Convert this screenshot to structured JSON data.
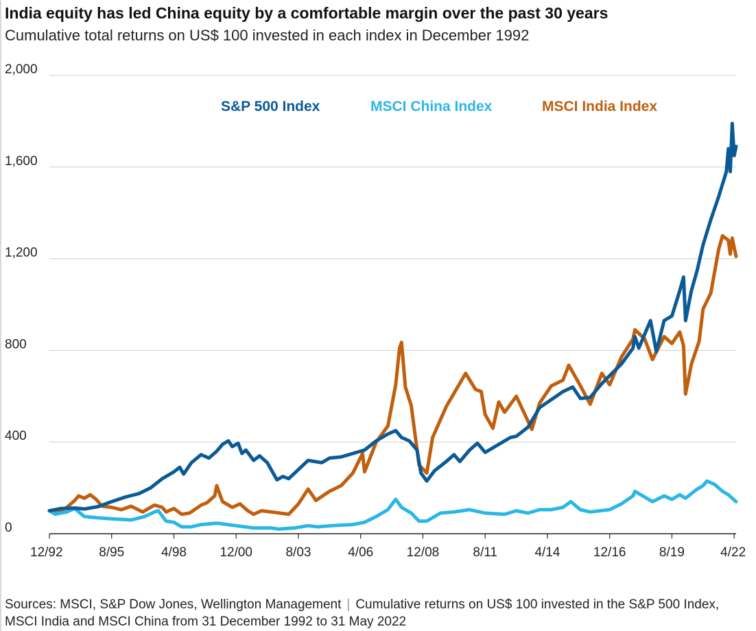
{
  "title": "India equity has led China equity by a comfortable margin over the past 30 years",
  "subtitle": "Cumulative total returns on US$ 100 invested in each index in December 1992",
  "source": {
    "left": "Sources: MSCI, S&P Dow Jones, Wellington Management",
    "right": "Cumulative returns on US$ 100 invested in the S&P 500 Index, MSCI India and MSCI China from 31 December 1992 to 31 May 2022"
  },
  "chart_data": {
    "type": "line",
    "title": "India equity has led China equity by a comfortable margin over the past 30 years",
    "subtitle": "Cumulative total returns on US$ 100 invested in each index in December 1992",
    "xlabel": "",
    "ylabel": "",
    "x_range": [
      "1992-12",
      "2022-05"
    ],
    "ylim": [
      0,
      2000
    ],
    "yticks": [
      0,
      400,
      800,
      1200,
      1600,
      2000
    ],
    "ytick_labels": [
      "0",
      "400",
      "800",
      "1,200",
      "1,600",
      "2,000"
    ],
    "xticks": [
      "1992-12",
      "1995-08",
      "1998-04",
      "2000-12",
      "2003-08",
      "2006-04",
      "2008-12",
      "2011-08",
      "2014-04",
      "2016-12",
      "2019-08",
      "2022-04"
    ],
    "xtick_labels": [
      "12/92",
      "8/95",
      "4/98",
      "12/00",
      "8/03",
      "4/06",
      "12/08",
      "8/11",
      "4/14",
      "12/16",
      "8/19",
      "4/22"
    ],
    "grid": "horizontal",
    "legend": "top, inline",
    "series": [
      {
        "name": "S&P 500 Index",
        "color": "#0b5a96",
        "points": [
          [
            "1992-12",
            100
          ],
          [
            "1993-06",
            110
          ],
          [
            "1994-01",
            112
          ],
          [
            "1994-06",
            108
          ],
          [
            "1995-01",
            118
          ],
          [
            "1995-08",
            140
          ],
          [
            "1996-03",
            160
          ],
          [
            "1996-10",
            175
          ],
          [
            "1997-04",
            200
          ],
          [
            "1997-10",
            240
          ],
          [
            "1998-04",
            270
          ],
          [
            "1998-07",
            290
          ],
          [
            "1998-09",
            260
          ],
          [
            "1999-01",
            310
          ],
          [
            "1999-06",
            345
          ],
          [
            "1999-10",
            330
          ],
          [
            "2000-02",
            360
          ],
          [
            "2000-05",
            390
          ],
          [
            "2000-08",
            405
          ],
          [
            "2000-10",
            380
          ],
          [
            "2001-01",
            395
          ],
          [
            "2001-03",
            350
          ],
          [
            "2001-05",
            365
          ],
          [
            "2001-09",
            320
          ],
          [
            "2001-12",
            340
          ],
          [
            "2002-04",
            310
          ],
          [
            "2002-07",
            265
          ],
          [
            "2002-09",
            235
          ],
          [
            "2002-12",
            250
          ],
          [
            "2003-03",
            240
          ],
          [
            "2003-08",
            280
          ],
          [
            "2004-01",
            320
          ],
          [
            "2004-08",
            310
          ],
          [
            "2004-12",
            330
          ],
          [
            "2005-06",
            335
          ],
          [
            "2005-12",
            350
          ],
          [
            "2006-06",
            365
          ],
          [
            "2006-12",
            405
          ],
          [
            "2007-06",
            435
          ],
          [
            "2007-10",
            450
          ],
          [
            "2008-01",
            420
          ],
          [
            "2008-05",
            405
          ],
          [
            "2008-09",
            365
          ],
          [
            "2008-11",
            265
          ],
          [
            "2009-02",
            230
          ],
          [
            "2009-06",
            275
          ],
          [
            "2009-12",
            315
          ],
          [
            "2010-04",
            345
          ],
          [
            "2010-07",
            315
          ],
          [
            "2010-12",
            365
          ],
          [
            "2011-04",
            395
          ],
          [
            "2011-08",
            355
          ],
          [
            "2011-12",
            375
          ],
          [
            "2012-09",
            420
          ],
          [
            "2012-12",
            425
          ],
          [
            "2013-06",
            465
          ],
          [
            "2013-12",
            550
          ],
          [
            "2014-06",
            585
          ],
          [
            "2014-12",
            620
          ],
          [
            "2015-05",
            640
          ],
          [
            "2015-09",
            590
          ],
          [
            "2016-02",
            595
          ],
          [
            "2016-08",
            655
          ],
          [
            "2016-12",
            690
          ],
          [
            "2017-06",
            740
          ],
          [
            "2017-12",
            810
          ],
          [
            "2018-01",
            860
          ],
          [
            "2018-03",
            810
          ],
          [
            "2018-09",
            930
          ],
          [
            "2018-12",
            795
          ],
          [
            "2019-04",
            930
          ],
          [
            "2019-08",
            950
          ],
          [
            "2019-12",
            1060
          ],
          [
            "2020-02",
            1120
          ],
          [
            "2020-03",
            930
          ],
          [
            "2020-06",
            1060
          ],
          [
            "2020-09",
            1150
          ],
          [
            "2020-12",
            1260
          ],
          [
            "2021-04",
            1370
          ],
          [
            "2021-08",
            1470
          ],
          [
            "2021-12",
            1580
          ],
          [
            "2022-01",
            1680
          ],
          [
            "2022-02",
            1580
          ],
          [
            "2022-03",
            1790
          ],
          [
            "2022-04",
            1650
          ],
          [
            "2022-05",
            1690
          ]
        ]
      },
      {
        "name": "MSCI China Index",
        "color": "#2ab7e6",
        "points": [
          [
            "1992-12",
            100
          ],
          [
            "1993-03",
            85
          ],
          [
            "1993-09",
            95
          ],
          [
            "1994-01",
            110
          ],
          [
            "1994-06",
            75
          ],
          [
            "1994-12",
            70
          ],
          [
            "1995-08",
            65
          ],
          [
            "1996-06",
            60
          ],
          [
            "1997-01",
            75
          ],
          [
            "1997-06",
            95
          ],
          [
            "1997-08",
            100
          ],
          [
            "1997-12",
            55
          ],
          [
            "1998-04",
            50
          ],
          [
            "1998-08",
            30
          ],
          [
            "1999-01",
            30
          ],
          [
            "1999-06",
            40
          ],
          [
            "2000-01",
            45
          ],
          [
            "2000-03",
            45
          ],
          [
            "2000-12",
            35
          ],
          [
            "2001-09",
            25
          ],
          [
            "2002-06",
            25
          ],
          [
            "2002-10",
            20
          ],
          [
            "2003-06",
            25
          ],
          [
            "2004-01",
            35
          ],
          [
            "2004-06",
            30
          ],
          [
            "2005-01",
            35
          ],
          [
            "2005-12",
            40
          ],
          [
            "2006-06",
            50
          ],
          [
            "2006-12",
            75
          ],
          [
            "2007-06",
            105
          ],
          [
            "2007-10",
            150
          ],
          [
            "2008-01",
            115
          ],
          [
            "2008-06",
            90
          ],
          [
            "2008-10",
            55
          ],
          [
            "2009-02",
            55
          ],
          [
            "2009-09",
            90
          ],
          [
            "2010-04",
            95
          ],
          [
            "2010-12",
            105
          ],
          [
            "2011-08",
            90
          ],
          [
            "2012-06",
            85
          ],
          [
            "2012-12",
            100
          ],
          [
            "2013-06",
            90
          ],
          [
            "2013-12",
            105
          ],
          [
            "2014-06",
            105
          ],
          [
            "2014-12",
            115
          ],
          [
            "2015-04",
            140
          ],
          [
            "2015-09",
            105
          ],
          [
            "2016-02",
            95
          ],
          [
            "2016-12",
            105
          ],
          [
            "2017-06",
            130
          ],
          [
            "2017-12",
            165
          ],
          [
            "2018-01",
            185
          ],
          [
            "2018-10",
            140
          ],
          [
            "2019-04",
            165
          ],
          [
            "2019-08",
            150
          ],
          [
            "2019-12",
            170
          ],
          [
            "2020-03",
            155
          ],
          [
            "2020-09",
            195
          ],
          [
            "2020-12",
            210
          ],
          [
            "2021-02",
            230
          ],
          [
            "2021-06",
            215
          ],
          [
            "2021-10",
            185
          ],
          [
            "2022-01",
            170
          ],
          [
            "2022-03",
            155
          ],
          [
            "2022-05",
            140
          ]
        ]
      },
      {
        "name": "MSCI India Index",
        "color": "#c05f0e",
        "points": [
          [
            "1992-12",
            100
          ],
          [
            "1993-04",
            90
          ],
          [
            "1993-09",
            115
          ],
          [
            "1994-01",
            145
          ],
          [
            "1994-03",
            165
          ],
          [
            "1994-06",
            155
          ],
          [
            "1994-09",
            170
          ],
          [
            "1994-12",
            150
          ],
          [
            "1995-03",
            120
          ],
          [
            "1995-08",
            115
          ],
          [
            "1996-01",
            105
          ],
          [
            "1996-06",
            120
          ],
          [
            "1996-12",
            95
          ],
          [
            "1997-06",
            125
          ],
          [
            "1997-10",
            115
          ],
          [
            "1997-12",
            95
          ],
          [
            "1998-04",
            110
          ],
          [
            "1998-08",
            85
          ],
          [
            "1998-12",
            90
          ],
          [
            "1999-06",
            125
          ],
          [
            "1999-09",
            135
          ],
          [
            "2000-01",
            165
          ],
          [
            "2000-02",
            210
          ],
          [
            "2000-05",
            140
          ],
          [
            "2000-10",
            115
          ],
          [
            "2001-02",
            130
          ],
          [
            "2001-06",
            100
          ],
          [
            "2001-09",
            85
          ],
          [
            "2002-01",
            100
          ],
          [
            "2002-06",
            95
          ],
          [
            "2003-03",
            85
          ],
          [
            "2003-08",
            130
          ],
          [
            "2004-01",
            195
          ],
          [
            "2004-05",
            145
          ],
          [
            "2004-12",
            185
          ],
          [
            "2005-06",
            210
          ],
          [
            "2005-12",
            265
          ],
          [
            "2006-05",
            350
          ],
          [
            "2006-06",
            270
          ],
          [
            "2006-12",
            400
          ],
          [
            "2007-06",
            470
          ],
          [
            "2007-10",
            650
          ],
          [
            "2007-12",
            810
          ],
          [
            "2008-01",
            835
          ],
          [
            "2008-03",
            640
          ],
          [
            "2008-06",
            560
          ],
          [
            "2008-10",
            300
          ],
          [
            "2009-02",
            265
          ],
          [
            "2009-05",
            420
          ],
          [
            "2009-12",
            555
          ],
          [
            "2010-10",
            700
          ],
          [
            "2011-03",
            630
          ],
          [
            "2011-06",
            620
          ],
          [
            "2011-08",
            520
          ],
          [
            "2011-12",
            460
          ],
          [
            "2012-03",
            575
          ],
          [
            "2012-06",
            530
          ],
          [
            "2012-12",
            600
          ],
          [
            "2013-08",
            455
          ],
          [
            "2013-12",
            570
          ],
          [
            "2014-06",
            645
          ],
          [
            "2014-12",
            670
          ],
          [
            "2015-03",
            735
          ],
          [
            "2015-09",
            645
          ],
          [
            "2016-02",
            565
          ],
          [
            "2016-08",
            700
          ],
          [
            "2016-12",
            650
          ],
          [
            "2017-06",
            770
          ],
          [
            "2017-12",
            850
          ],
          [
            "2018-01",
            890
          ],
          [
            "2018-06",
            850
          ],
          [
            "2018-10",
            760
          ],
          [
            "2019-04",
            860
          ],
          [
            "2019-08",
            830
          ],
          [
            "2019-12",
            880
          ],
          [
            "2020-02",
            820
          ],
          [
            "2020-03",
            610
          ],
          [
            "2020-06",
            740
          ],
          [
            "2020-10",
            840
          ],
          [
            "2020-12",
            980
          ],
          [
            "2021-04",
            1050
          ],
          [
            "2021-08",
            1240
          ],
          [
            "2021-10",
            1300
          ],
          [
            "2022-01",
            1280
          ],
          [
            "2022-02",
            1220
          ],
          [
            "2022-03",
            1290
          ],
          [
            "2022-05",
            1210
          ]
        ]
      }
    ]
  }
}
